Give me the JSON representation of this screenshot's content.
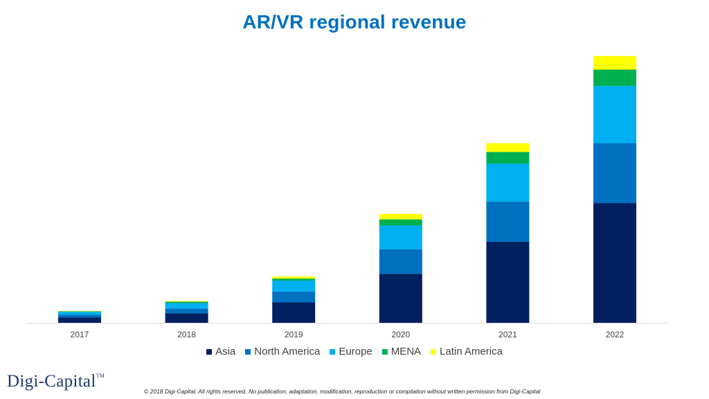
{
  "chart_data": {
    "type": "bar",
    "stacked": true,
    "title": "AR/VR regional revenue",
    "xlabel": "",
    "ylabel": "",
    "categories": [
      "2017",
      "2018",
      "2019",
      "2020",
      "2021",
      "2022"
    ],
    "series": [
      {
        "name": "Asia",
        "color": "#002060",
        "values": [
          0.8,
          1.4,
          3.0,
          7.2,
          11.9,
          17.6
        ]
      },
      {
        "name": "North America",
        "color": "#0070C0",
        "values": [
          0.4,
          0.7,
          1.6,
          3.6,
          5.9,
          8.8
        ]
      },
      {
        "name": "Europe",
        "color": "#00B0F0",
        "values": [
          0.4,
          0.8,
          1.6,
          3.5,
          5.6,
          8.4
        ]
      },
      {
        "name": "MENA",
        "color": "#00B050",
        "values": [
          0.1,
          0.2,
          0.3,
          0.9,
          1.7,
          2.4
        ]
      },
      {
        "name": "Latin America",
        "color": "#FFFF00",
        "values": [
          0.05,
          0.1,
          0.3,
          0.8,
          1.3,
          2.0
        ]
      }
    ],
    "ylim": [
      0,
      40
    ],
    "grid": false,
    "legend": "bottom"
  },
  "footer": {
    "logo_text": "Digi-Capital",
    "logo_tm": "TM",
    "copyright": "© 2018 Digi-Capital. All rights reserved. No publication, adaptation, modification, reproduction or compilation without written permission from Digi-Capital"
  }
}
